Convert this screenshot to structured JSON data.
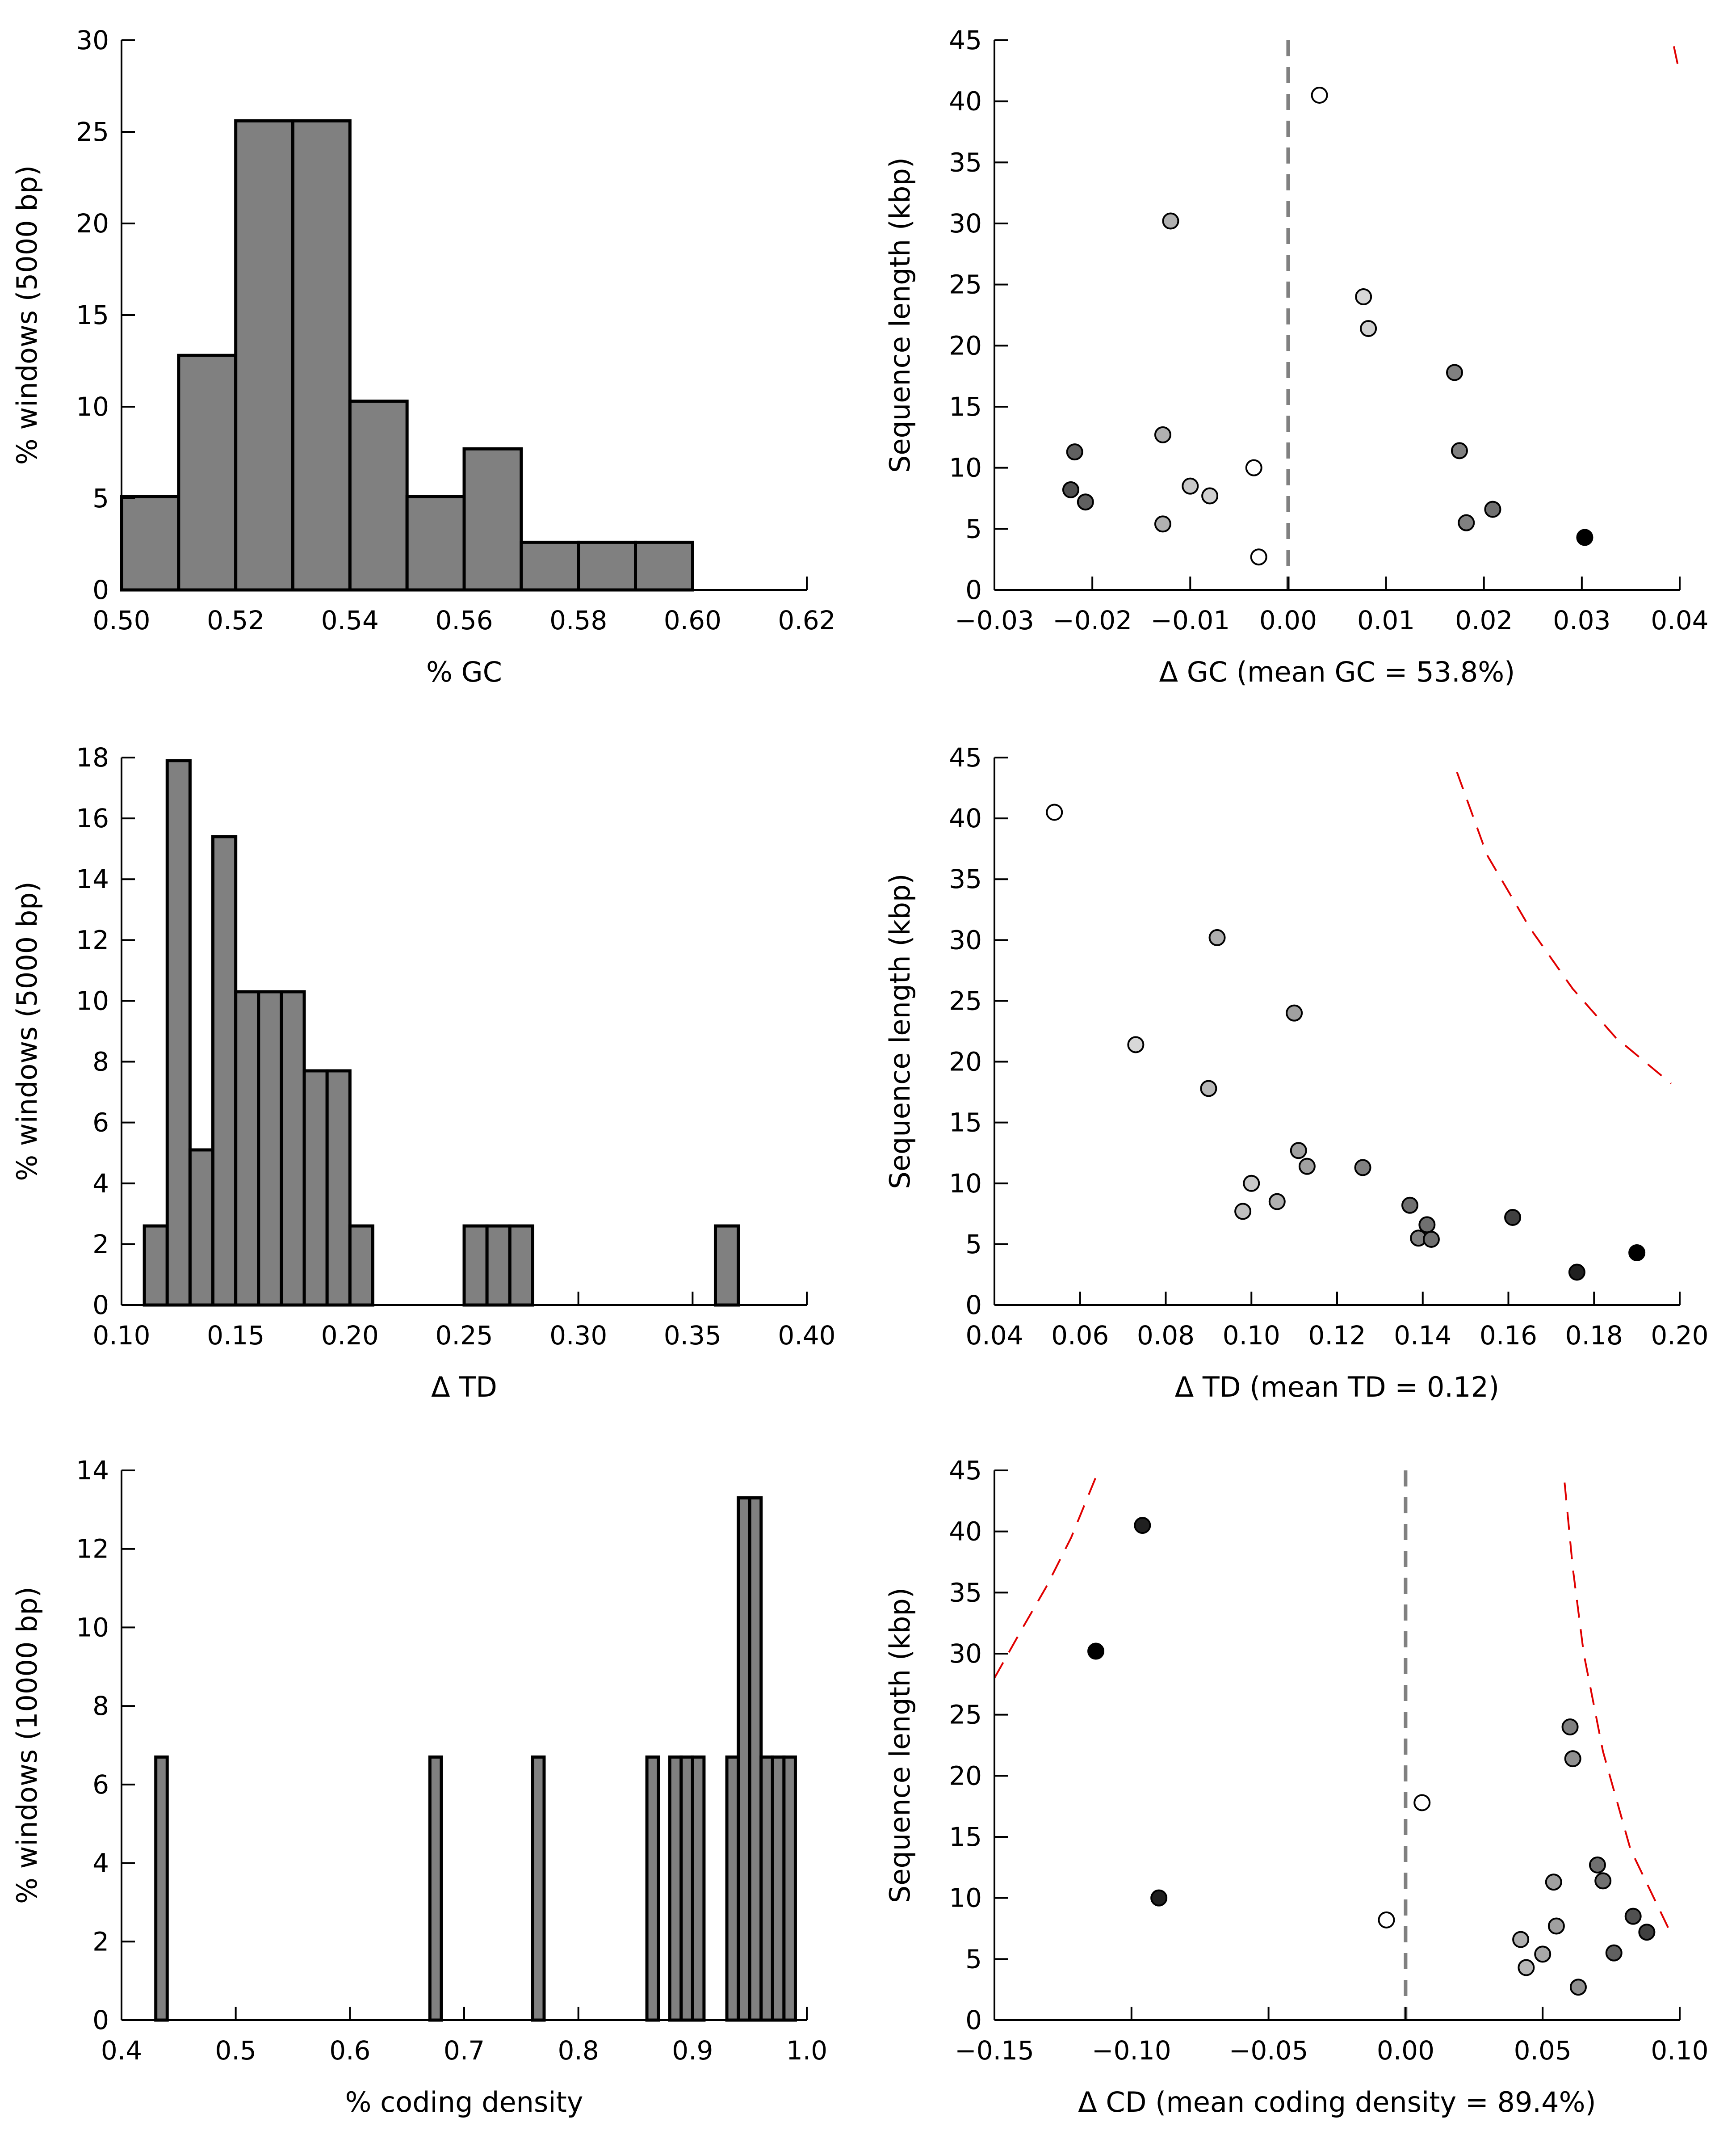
{
  "chart_data": [
    {
      "id": "gc-hist",
      "type": "bar",
      "xlabel": "% GC",
      "ylabel": "% windows (5000 bp)",
      "xlim": [
        0.5,
        0.62
      ],
      "ylim": [
        0,
        30
      ],
      "xticks": [
        "0.50",
        "0.52",
        "0.54",
        "0.56",
        "0.58",
        "0.60",
        "0.62"
      ],
      "yticks": [
        "0",
        "5",
        "10",
        "15",
        "20",
        "25",
        "30"
      ],
      "bin_width": 0.01,
      "bins": [
        {
          "x": 0.5,
          "value": 5.1
        },
        {
          "x": 0.51,
          "value": 12.8
        },
        {
          "x": 0.52,
          "value": 25.6
        },
        {
          "x": 0.53,
          "value": 25.6
        },
        {
          "x": 0.54,
          "value": 10.3
        },
        {
          "x": 0.55,
          "value": 5.1
        },
        {
          "x": 0.56,
          "value": 7.7
        },
        {
          "x": 0.57,
          "value": 2.6
        },
        {
          "x": 0.58,
          "value": 2.6
        },
        {
          "x": 0.59,
          "value": 2.6
        }
      ]
    },
    {
      "id": "gc-scatter",
      "type": "scatter",
      "xlabel": "Δ GC (mean GC = 53.8%)",
      "ylabel": "Sequence length (kbp)",
      "xlim": [
        -0.03,
        0.04
      ],
      "ylim": [
        0,
        45
      ],
      "xticks": [
        "−0.03",
        "−0.02",
        "−0.01",
        "0.00",
        "0.01",
        "0.02",
        "0.03",
        "0.04"
      ],
      "yticks": [
        "0",
        "5",
        "10",
        "15",
        "20",
        "25",
        "30",
        "35",
        "40",
        "45"
      ],
      "zero_line": 0,
      "threshold_segments": [
        [
          [
            0.0394,
            44.5
          ],
          [
            0.0398,
            43.0
          ]
        ]
      ],
      "points": [
        {
          "x": 0.0032,
          "y": 40.5,
          "color": "#ffffff"
        },
        {
          "x": -0.012,
          "y": 30.2,
          "color": "#b0b0b0"
        },
        {
          "x": 0.0077,
          "y": 24.0,
          "color": "#d8d8d8"
        },
        {
          "x": 0.0082,
          "y": 21.4,
          "color": "#d0d0d0"
        },
        {
          "x": 0.017,
          "y": 17.8,
          "color": "#808080"
        },
        {
          "x": -0.0128,
          "y": 12.7,
          "color": "#b0b0b0"
        },
        {
          "x": -0.0218,
          "y": 11.3,
          "color": "#606060"
        },
        {
          "x": 0.0175,
          "y": 11.4,
          "color": "#808080"
        },
        {
          "x": -0.0035,
          "y": 10.0,
          "color": "#ffffff"
        },
        {
          "x": -0.01,
          "y": 8.5,
          "color": "#c8c8c8"
        },
        {
          "x": -0.0222,
          "y": 8.2,
          "color": "#505050"
        },
        {
          "x": -0.008,
          "y": 7.7,
          "color": "#d0d0d0"
        },
        {
          "x": -0.0207,
          "y": 7.2,
          "color": "#606060"
        },
        {
          "x": 0.0209,
          "y": 6.6,
          "color": "#707070"
        },
        {
          "x": 0.0182,
          "y": 5.5,
          "color": "#808080"
        },
        {
          "x": -0.0128,
          "y": 5.4,
          "color": "#b0b0b0"
        },
        {
          "x": 0.0303,
          "y": 4.3,
          "color": "#000000"
        },
        {
          "x": -0.003,
          "y": 2.7,
          "color": "#ffffff"
        }
      ]
    },
    {
      "id": "td-hist",
      "type": "bar",
      "xlabel": "Δ TD",
      "ylabel": "% windows (5000 bp)",
      "xlim": [
        0.1,
        0.4
      ],
      "ylim": [
        0,
        18
      ],
      "xticks": [
        "0.10",
        "0.15",
        "0.20",
        "0.25",
        "0.30",
        "0.35",
        "0.40"
      ],
      "yticks": [
        "0",
        "2",
        "4",
        "6",
        "8",
        "10",
        "12",
        "14",
        "16",
        "18"
      ],
      "bin_width": 0.01,
      "bins": [
        {
          "x": 0.11,
          "value": 2.6
        },
        {
          "x": 0.12,
          "value": 17.9
        },
        {
          "x": 0.13,
          "value": 5.1
        },
        {
          "x": 0.14,
          "value": 15.4
        },
        {
          "x": 0.15,
          "value": 10.3
        },
        {
          "x": 0.16,
          "value": 10.3
        },
        {
          "x": 0.17,
          "value": 10.3
        },
        {
          "x": 0.18,
          "value": 7.7
        },
        {
          "x": 0.19,
          "value": 7.7
        },
        {
          "x": 0.2,
          "value": 2.6
        },
        {
          "x": 0.25,
          "value": 2.6
        },
        {
          "x": 0.26,
          "value": 2.6
        },
        {
          "x": 0.27,
          "value": 2.6
        },
        {
          "x": 0.36,
          "value": 2.6
        }
      ]
    },
    {
      "id": "td-scatter",
      "type": "scatter",
      "xlabel": "Δ TD (mean TD = 0.12)",
      "ylabel": "Sequence length (kbp)",
      "xlim": [
        0.04,
        0.2
      ],
      "ylim": [
        0,
        45
      ],
      "xticks": [
        "0.04",
        "0.06",
        "0.08",
        "0.10",
        "0.12",
        "0.14",
        "0.16",
        "0.18",
        "0.20"
      ],
      "yticks": [
        "0",
        "5",
        "10",
        "15",
        "20",
        "25",
        "30",
        "35",
        "40",
        "45"
      ],
      "threshold_segments": [
        [
          [
            0.148,
            43.8
          ],
          [
            0.155,
            37.0
          ],
          [
            0.165,
            31.0
          ],
          [
            0.175,
            26.0
          ],
          [
            0.185,
            22.0
          ],
          [
            0.198,
            18.2
          ]
        ]
      ],
      "points": [
        {
          "x": 0.054,
          "y": 40.5,
          "color": "#ffffff"
        },
        {
          "x": 0.092,
          "y": 30.2,
          "color": "#b0b0b0"
        },
        {
          "x": 0.11,
          "y": 24.0,
          "color": "#a0a0a0"
        },
        {
          "x": 0.073,
          "y": 21.4,
          "color": "#d8d8d8"
        },
        {
          "x": 0.09,
          "y": 17.8,
          "color": "#b8b8b8"
        },
        {
          "x": 0.111,
          "y": 12.7,
          "color": "#a0a0a0"
        },
        {
          "x": 0.113,
          "y": 11.4,
          "color": "#a0a0a0"
        },
        {
          "x": 0.126,
          "y": 11.3,
          "color": "#808080"
        },
        {
          "x": 0.1,
          "y": 10.0,
          "color": "#c8c8c8"
        },
        {
          "x": 0.106,
          "y": 8.5,
          "color": "#b0b0b0"
        },
        {
          "x": 0.137,
          "y": 8.2,
          "color": "#707070"
        },
        {
          "x": 0.098,
          "y": 7.7,
          "color": "#c0c0c0"
        },
        {
          "x": 0.161,
          "y": 7.2,
          "color": "#404040"
        },
        {
          "x": 0.141,
          "y": 6.6,
          "color": "#707070"
        },
        {
          "x": 0.139,
          "y": 5.5,
          "color": "#808080"
        },
        {
          "x": 0.142,
          "y": 5.4,
          "color": "#707070"
        },
        {
          "x": 0.19,
          "y": 4.3,
          "color": "#000000"
        },
        {
          "x": 0.176,
          "y": 2.7,
          "color": "#202020"
        }
      ]
    },
    {
      "id": "cd-hist",
      "type": "bar",
      "xlabel": "% coding density",
      "ylabel": "% windows (10000 bp)",
      "xlim": [
        0.4,
        1.0
      ],
      "ylim": [
        0,
        14
      ],
      "xticks": [
        "0.4",
        "0.5",
        "0.6",
        "0.7",
        "0.8",
        "0.9",
        "1.0"
      ],
      "yticks": [
        "0",
        "2",
        "4",
        "6",
        "8",
        "10",
        "12",
        "14"
      ],
      "bin_width": 0.01,
      "bins": [
        {
          "x": 0.43,
          "value": 6.7
        },
        {
          "x": 0.67,
          "value": 6.7
        },
        {
          "x": 0.76,
          "value": 6.7
        },
        {
          "x": 0.86,
          "value": 6.7
        },
        {
          "x": 0.88,
          "value": 6.7
        },
        {
          "x": 0.89,
          "value": 6.7
        },
        {
          "x": 0.9,
          "value": 6.7
        },
        {
          "x": 0.93,
          "value": 6.7
        },
        {
          "x": 0.94,
          "value": 13.3
        },
        {
          "x": 0.95,
          "value": 13.3
        },
        {
          "x": 0.96,
          "value": 6.7
        },
        {
          "x": 0.97,
          "value": 6.7
        },
        {
          "x": 0.98,
          "value": 6.7
        }
      ]
    },
    {
      "id": "cd-scatter",
      "type": "scatter",
      "xlabel": "Δ CD (mean coding density = 89.4%)",
      "ylabel": "Sequence length (kbp)",
      "xlim": [
        -0.15,
        0.1
      ],
      "ylim": [
        0,
        45
      ],
      "xticks": [
        "−0.15",
        "−0.10",
        "−0.05",
        "0.00",
        "0.05",
        "0.10"
      ],
      "yticks": [
        "0",
        "5",
        "10",
        "15",
        "20",
        "25",
        "30",
        "35",
        "40",
        "45"
      ],
      "zero_line": 0,
      "threshold_segments": [
        [
          [
            -0.15,
            28.0
          ],
          [
            -0.14,
            32.0
          ],
          [
            -0.131,
            35.5
          ],
          [
            -0.122,
            39.5
          ],
          [
            -0.112,
            45.0
          ]
        ],
        [
          [
            0.058,
            44.0
          ],
          [
            0.061,
            37.0
          ],
          [
            0.065,
            30.0
          ],
          [
            0.072,
            22.0
          ],
          [
            0.082,
            14.0
          ],
          [
            0.097,
            7.0
          ]
        ]
      ],
      "points": [
        {
          "x": -0.096,
          "y": 40.5,
          "color": "#202020"
        },
        {
          "x": -0.113,
          "y": 30.2,
          "color": "#000000"
        },
        {
          "x": 0.06,
          "y": 24.0,
          "color": "#808080"
        },
        {
          "x": 0.061,
          "y": 21.4,
          "color": "#909090"
        },
        {
          "x": 0.006,
          "y": 17.8,
          "color": "#ffffff"
        },
        {
          "x": 0.07,
          "y": 12.7,
          "color": "#707070"
        },
        {
          "x": 0.054,
          "y": 11.3,
          "color": "#a0a0a0"
        },
        {
          "x": 0.072,
          "y": 11.4,
          "color": "#707070"
        },
        {
          "x": -0.09,
          "y": 10.0,
          "color": "#202020"
        },
        {
          "x": 0.083,
          "y": 8.5,
          "color": "#505050"
        },
        {
          "x": -0.007,
          "y": 8.2,
          "color": "#ffffff"
        },
        {
          "x": 0.055,
          "y": 7.7,
          "color": "#a0a0a0"
        },
        {
          "x": 0.088,
          "y": 7.2,
          "color": "#404040"
        },
        {
          "x": 0.042,
          "y": 6.6,
          "color": "#b0b0b0"
        },
        {
          "x": 0.076,
          "y": 5.5,
          "color": "#606060"
        },
        {
          "x": 0.05,
          "y": 5.4,
          "color": "#a8a8a8"
        },
        {
          "x": 0.044,
          "y": 4.3,
          "color": "#b8b8b8"
        },
        {
          "x": 0.063,
          "y": 2.7,
          "color": "#909090"
        }
      ]
    }
  ]
}
